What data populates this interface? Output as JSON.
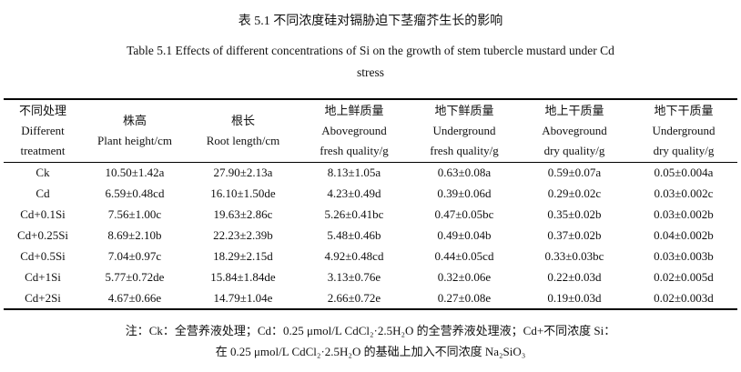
{
  "caption": {
    "cn": "表 5.1  不同浓度硅对镉胁迫下茎瘤芥生长的影响",
    "en_line1": "Table 5.1 Effects of different concentrations of Si on the growth of stem tubercle mustard under Cd",
    "en_line2": "stress"
  },
  "table": {
    "headers": [
      {
        "lines": [
          "不同处理",
          "Different",
          "treatment"
        ]
      },
      {
        "lines": [
          "株高",
          "Plant height/cm"
        ]
      },
      {
        "lines": [
          "根长",
          "Root length/cm"
        ]
      },
      {
        "lines": [
          "地上鲜质量",
          "Aboveground",
          "fresh quality/g"
        ]
      },
      {
        "lines": [
          "地下鲜质量",
          "Underground",
          "fresh quality/g"
        ]
      },
      {
        "lines": [
          "地上干质量",
          "Aboveground",
          "dry quality/g"
        ]
      },
      {
        "lines": [
          "地下干质量",
          "Underground",
          "dry quality/g"
        ]
      }
    ],
    "rows": [
      [
        "Ck",
        "10.50±1.42a",
        "27.90±2.13a",
        "8.13±1.05a",
        "0.63±0.08a",
        "0.59±0.07a",
        "0.05±0.004a"
      ],
      [
        "Cd",
        "6.59±0.48cd",
        "16.10±1.50de",
        "4.23±0.49d",
        "0.39±0.06d",
        "0.29±0.02c",
        "0.03±0.002c"
      ],
      [
        "Cd+0.1Si",
        "7.56±1.00c",
        "19.63±2.86c",
        "5.26±0.41bc",
        "0.47±0.05bc",
        "0.35±0.02b",
        "0.03±0.002b"
      ],
      [
        "Cd+0.25Si",
        "8.69±2.10b",
        "22.23±2.39b",
        "5.48±0.46b",
        "0.49±0.04b",
        "0.37±0.02b",
        "0.04±0.002b"
      ],
      [
        "Cd+0.5Si",
        "7.04±0.97c",
        "18.29±2.15d",
        "4.92±0.48cd",
        "0.44±0.05cd",
        "0.33±0.03bc",
        "0.03±0.003b"
      ],
      [
        "Cd+1Si",
        "5.77±0.72de",
        "15.84±1.84de",
        "3.13±0.76e",
        "0.32±0.06e",
        "0.22±0.03d",
        "0.02±0.005d"
      ],
      [
        "Cd+2Si",
        "4.67±0.66e",
        "14.79±1.04e",
        "2.66±0.72e",
        "0.27±0.08e",
        "0.19±0.03d",
        "0.02±0.003d"
      ]
    ]
  },
  "note": {
    "line1": "注：Ck：全营养液处理；Cd：0.25 μmol/L CdCl₂·2.5H₂O 的全营养液处理液；Cd+不同浓度 Si：",
    "line2": "在 0.25 μmol/L CdCl₂·2.5H₂O 的基础上加入不同浓度 Na₂SiO₃"
  }
}
